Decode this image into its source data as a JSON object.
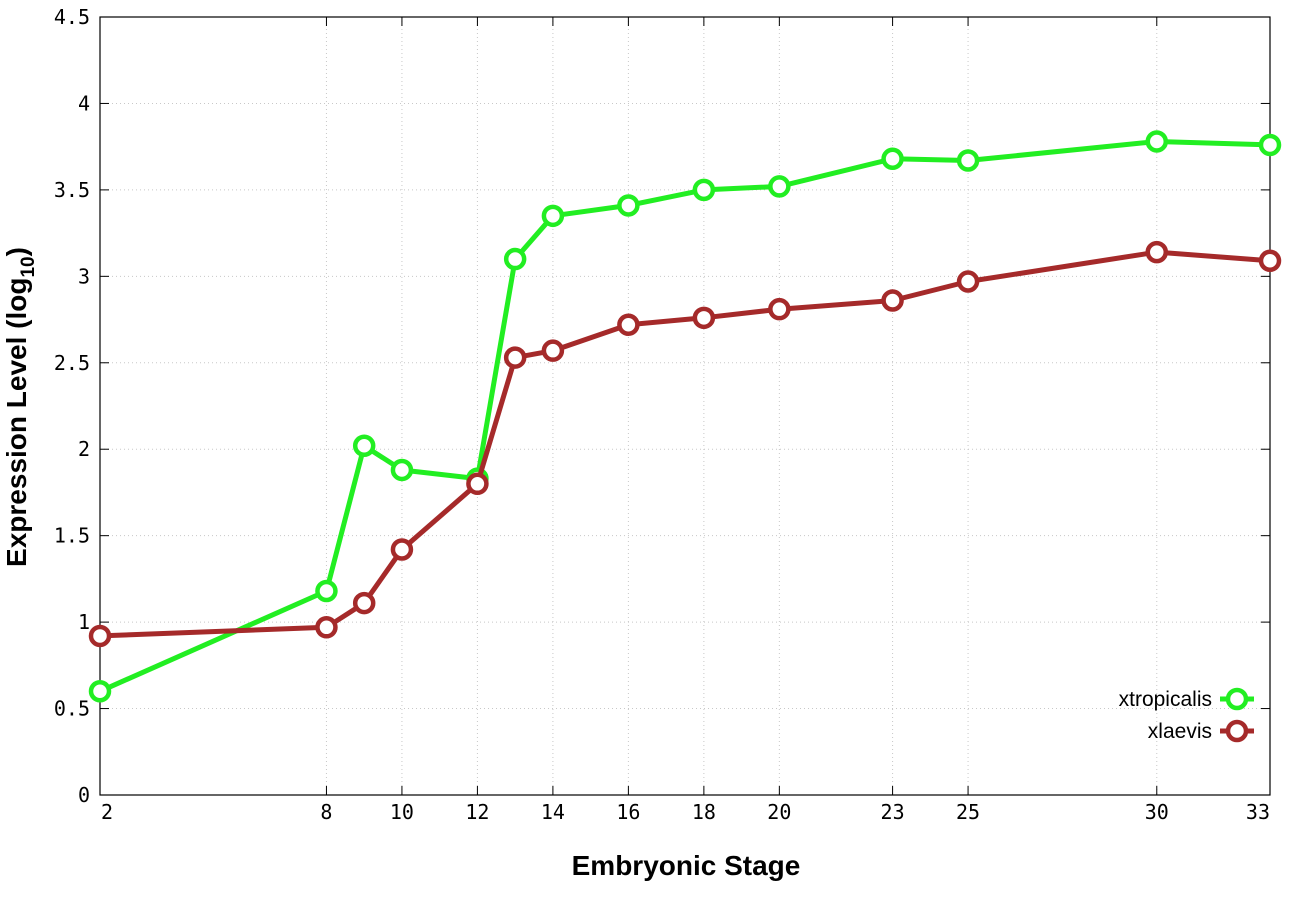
{
  "chart_data": {
    "type": "line",
    "xlabel": "Embryonic Stage",
    "ylabel_main": "Expression Level (log",
    "ylabel_sub": "10",
    "ylabel_close": ")",
    "xlim": [
      2,
      33
    ],
    "ylim": [
      0,
      4.5
    ],
    "grid": true,
    "legend_position": "bottom-right",
    "x_ticks": [
      2,
      8,
      10,
      12,
      14,
      16,
      18,
      20,
      23,
      25,
      30,
      33
    ],
    "y_ticks": [
      0,
      0.5,
      1,
      1.5,
      2,
      2.5,
      3,
      3.5,
      4,
      4.5
    ],
    "y_tick_labels": [
      "0",
      "0.5",
      "1",
      "1.5",
      "2",
      "2.5",
      "3",
      "3.5",
      "4",
      "4.5"
    ],
    "series": [
      {
        "name": "xtropicalis",
        "color": "#22ee22",
        "x": [
          2,
          8,
          9,
          10,
          12,
          13,
          14,
          16,
          18,
          20,
          23,
          25,
          30,
          33
        ],
        "y": [
          0.6,
          1.18,
          2.02,
          1.88,
          1.83,
          3.1,
          3.35,
          3.41,
          3.5,
          3.52,
          3.68,
          3.67,
          3.78,
          3.76
        ]
      },
      {
        "name": "xlaevis",
        "color": "#a52a2a",
        "x": [
          2,
          8,
          9,
          10,
          12,
          13,
          14,
          16,
          18,
          20,
          23,
          25,
          30,
          33
        ],
        "y": [
          0.92,
          0.97,
          1.11,
          1.42,
          1.8,
          2.53,
          2.57,
          2.72,
          2.76,
          2.81,
          2.86,
          2.97,
          3.14,
          3.09
        ]
      }
    ]
  }
}
